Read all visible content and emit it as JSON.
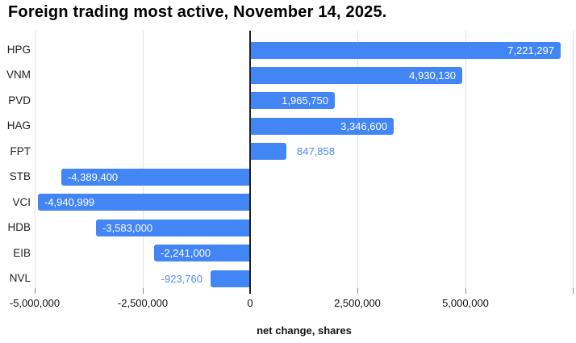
{
  "chart_data": {
    "type": "bar",
    "orientation": "horizontal",
    "title": "Foreign trading most active, November 14, 2025.",
    "xlabel": "net change, shares",
    "categories": [
      "HPG",
      "VNM",
      "PVD",
      "HAG",
      "FPT",
      "STB",
      "VCI",
      "HDB",
      "EIB",
      "NVL"
    ],
    "values": [
      7221297,
      4930130,
      1965750,
      3346600,
      847858,
      -4389400,
      -4940999,
      -3583000,
      -2241000,
      -923760
    ],
    "value_labels": [
      "7,221,297",
      "4,930,130",
      "1,965,750",
      "3,346,600",
      "847,858",
      "-4,389,400",
      "-4,940,999",
      "-3,583,000",
      "-2,241,000",
      "-923,760"
    ],
    "x_axis": {
      "ticks": [
        {
          "value": -5000000,
          "label": "-5,000,000"
        },
        {
          "value": -2500000,
          "label": "-2,500,000"
        },
        {
          "value": 0,
          "label": "0"
        },
        {
          "value": 2500000,
          "label": "2,500,000"
        },
        {
          "value": 5000000,
          "label": "5,000,000"
        },
        {
          "value": 7500000,
          "label": ""
        }
      ]
    },
    "xlim": [
      -5000000,
      7577000
    ],
    "grid": true,
    "legend": false,
    "colors": {
      "bar": "#4285f4",
      "value_label_inside": "#ffffff",
      "value_label_outside": "#4e8af4",
      "gridline": "#e2e2e2",
      "tick_mark": "#8a8a8a",
      "zero_line": "#212121",
      "title_text": "#000000",
      "axis_text": "#111111"
    }
  }
}
